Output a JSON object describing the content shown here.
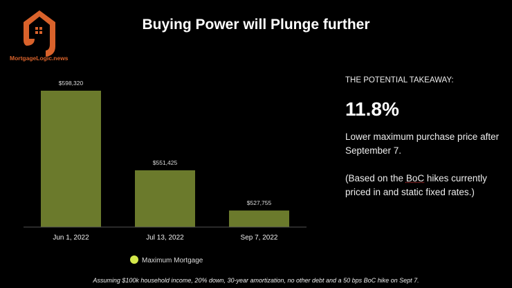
{
  "logo": {
    "text": "MortgageLogic.news",
    "color": "#d9622b"
  },
  "title": "Buying Power will Plunge further",
  "chart_data": {
    "type": "bar",
    "title": "",
    "categories": [
      "Jun 1, 2022",
      "Jul 13, 2022",
      "Sep 7, 2022"
    ],
    "series": [
      {
        "name": "Maximum Mortgage",
        "values": [
          598320,
          551425,
          527755
        ],
        "color": "#6b7a2c"
      }
    ],
    "data_labels": [
      "$598,320",
      "$551,425",
      "$527,755"
    ],
    "ylim": [
      518000,
      600000
    ],
    "grid": false,
    "legend": {
      "placement": "bottom",
      "marker_color": "#d4e84a"
    },
    "xlabel": "",
    "ylabel": ""
  },
  "takeaway": {
    "heading": "THE POTENTIAL TAKEAWAY:",
    "percent": "11.8%",
    "body": "Lower maximum purchase price after September 7.",
    "note_before": "(Based on the ",
    "note_boc": "BoC",
    "note_after": " hikes currently priced in and static fixed rates.)"
  },
  "footnote": "Assuming $100k household income, 20% down, 30-year amortization, no other debt and a 50 bps BoC hike on Sept 7."
}
